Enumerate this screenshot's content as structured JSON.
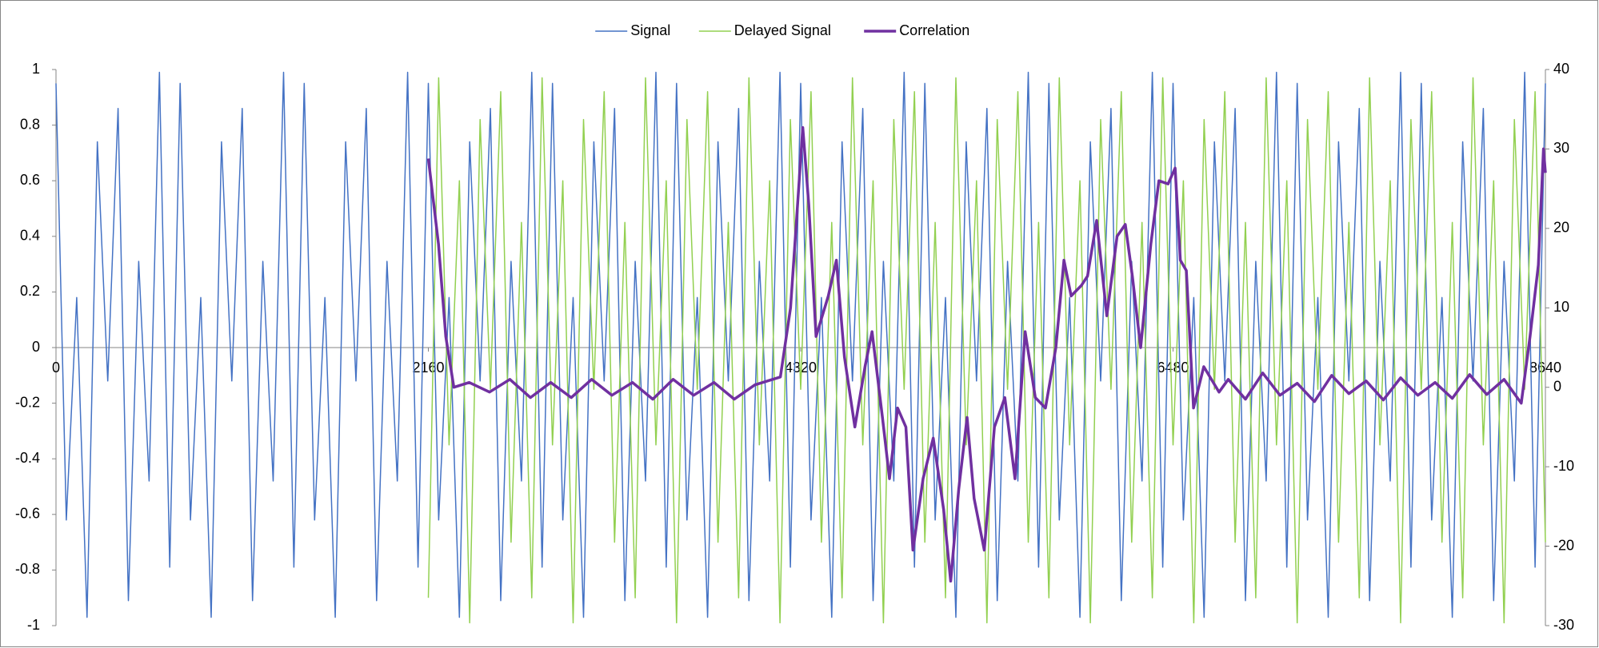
{
  "chart_data": {
    "type": "line",
    "xlim": [
      0,
      8640
    ],
    "xticks": [
      0,
      2160,
      4320,
      6480,
      8640
    ],
    "ylim": [
      -1,
      1
    ],
    "yticks": [
      -1,
      -0.8,
      -0.6,
      -0.4,
      -0.2,
      0,
      0.2,
      0.4,
      0.6,
      0.8,
      1
    ],
    "y2lim": [
      -30,
      40
    ],
    "y2ticks": [
      -30,
      -20,
      -10,
      0,
      10,
      20,
      30,
      40
    ],
    "legend": "top",
    "series": [
      {
        "name": "Signal",
        "color": "#4472c4",
        "width": 1.5,
        "x": [
          0,
          60,
          120,
          180,
          240,
          300,
          360,
          420,
          480,
          540,
          600,
          660,
          720,
          780,
          840,
          900,
          960,
          1020,
          1080,
          1140,
          1200,
          1260,
          1320,
          1380,
          1440,
          1500,
          1560,
          1620,
          1680,
          1740,
          1800,
          1860,
          1920,
          1980,
          2040,
          2100,
          2160,
          2220,
          2280,
          2340,
          2400,
          2460,
          2520,
          2580,
          2640,
          2700,
          2760,
          2820,
          2880,
          2940,
          3000,
          3060,
          3120,
          3180,
          3240,
          3300,
          3360,
          3420,
          3480,
          3540,
          3600,
          3660,
          3720,
          3780,
          3840,
          3900,
          3960,
          4020,
          4080,
          4140,
          4200,
          4260,
          4320,
          4380,
          4440,
          4500,
          4560,
          4620,
          4680,
          4740,
          4800,
          4860,
          4920,
          4980,
          5040,
          5100,
          5160,
          5220,
          5280,
          5340,
          5400,
          5460,
          5520,
          5580,
          5640,
          5700,
          5760,
          5820,
          5880,
          5940,
          6000,
          6060,
          6120,
          6180,
          6240,
          6300,
          6360,
          6420,
          6480,
          6540,
          6600,
          6660,
          6720,
          6780,
          6840,
          6900,
          6960,
          7020,
          7080,
          7140,
          7200,
          7260,
          7320,
          7380,
          7440,
          7500,
          7560,
          7620,
          7680,
          7740,
          7800,
          7860,
          7920,
          7980,
          8040,
          8100,
          8160,
          8220,
          8280,
          8340,
          8400,
          8460,
          8520,
          8580,
          8640
        ],
        "values": [
          0.95,
          -0.62,
          0.18,
          -0.97,
          0.74,
          -0.12,
          0.86,
          -0.91,
          0.31,
          -0.48,
          0.99,
          -0.79,
          0.95,
          -0.62,
          0.18,
          -0.97,
          0.74,
          -0.12,
          0.86,
          -0.91,
          0.31,
          -0.48,
          0.99,
          -0.79,
          0.95,
          -0.62,
          0.18,
          -0.97,
          0.74,
          -0.12,
          0.86,
          -0.91,
          0.31,
          -0.48,
          0.99,
          -0.79,
          0.95,
          -0.62,
          0.18,
          -0.97,
          0.74,
          -0.12,
          0.86,
          -0.91,
          0.31,
          -0.48,
          0.99,
          -0.79,
          0.95,
          -0.62,
          0.18,
          -0.97,
          0.74,
          -0.12,
          0.86,
          -0.91,
          0.31,
          -0.48,
          0.99,
          -0.79,
          0.95,
          -0.62,
          0.18,
          -0.97,
          0.74,
          -0.12,
          0.86,
          -0.91,
          0.31,
          -0.48,
          0.99,
          -0.79,
          0.95,
          -0.62,
          0.18,
          -0.97,
          0.74,
          -0.12,
          0.86,
          -0.91,
          0.31,
          -0.48,
          0.99,
          -0.79,
          0.95,
          -0.62,
          0.18,
          -0.97,
          0.74,
          -0.12,
          0.86,
          -0.91,
          0.31,
          -0.48,
          0.99,
          -0.79,
          0.95,
          -0.62,
          0.18,
          -0.97,
          0.74,
          -0.12,
          0.86,
          -0.91,
          0.31,
          -0.48,
          0.99,
          -0.79,
          0.95,
          -0.62,
          0.18,
          -0.97,
          0.74,
          -0.12,
          0.86,
          -0.91,
          0.31,
          -0.48,
          0.99,
          -0.79,
          0.95,
          -0.62,
          0.18,
          -0.97,
          0.74,
          -0.12,
          0.86,
          -0.91,
          0.31,
          -0.48,
          0.99,
          -0.79,
          0.95,
          -0.62,
          0.18,
          -0.97,
          0.74,
          -0.12,
          0.86,
          -0.91,
          0.31,
          -0.48,
          0.99,
          -0.79,
          0.95
        ]
      },
      {
        "name": "Delayed Signal",
        "color": "#92d050",
        "width": 1.5,
        "x": [
          2160,
          2220,
          2280,
          2340,
          2400,
          2460,
          2520,
          2580,
          2640,
          2700,
          2760,
          2820,
          2880,
          2940,
          3000,
          3060,
          3120,
          3180,
          3240,
          3300,
          3360,
          3420,
          3480,
          3540,
          3600,
          3660,
          3720,
          3780,
          3840,
          3900,
          3960,
          4020,
          4080,
          4140,
          4200,
          4260,
          4320,
          4380,
          4440,
          4500,
          4560,
          4620,
          4680,
          4740,
          4800,
          4860,
          4920,
          4980,
          5040,
          5100,
          5160,
          5220,
          5280,
          5340,
          5400,
          5460,
          5520,
          5580,
          5640,
          5700,
          5760,
          5820,
          5880,
          5940,
          6000,
          6060,
          6120,
          6180,
          6240,
          6300,
          6360,
          6420,
          6480,
          6540,
          6600,
          6660,
          6720,
          6780,
          6840,
          6900,
          6960,
          7020,
          7080,
          7140,
          7200,
          7260,
          7320,
          7380,
          7440,
          7500,
          7560,
          7620,
          7680,
          7740,
          7800,
          7860,
          7920,
          7980,
          8040,
          8100,
          8160,
          8220,
          8280,
          8340,
          8400,
          8460,
          8520,
          8580,
          8640
        ],
        "values": [
          -0.9,
          0.97,
          -0.35,
          0.6,
          -0.99,
          0.82,
          -0.15,
          0.92,
          -0.7,
          0.45,
          -0.9,
          0.97,
          -0.35,
          0.6,
          -0.99,
          0.82,
          -0.15,
          0.92,
          -0.7,
          0.45,
          -0.9,
          0.97,
          -0.35,
          0.6,
          -0.99,
          0.82,
          -0.15,
          0.92,
          -0.7,
          0.45,
          -0.9,
          0.97,
          -0.35,
          0.6,
          -0.99,
          0.82,
          -0.15,
          0.92,
          -0.7,
          0.45,
          -0.9,
          0.97,
          -0.35,
          0.6,
          -0.99,
          0.82,
          -0.15,
          0.92,
          -0.7,
          0.45,
          -0.9,
          0.97,
          -0.35,
          0.6,
          -0.99,
          0.82,
          -0.15,
          0.92,
          -0.7,
          0.45,
          -0.9,
          0.97,
          -0.35,
          0.6,
          -0.99,
          0.82,
          -0.15,
          0.92,
          -0.7,
          0.45,
          -0.9,
          0.97,
          -0.35,
          0.6,
          -0.99,
          0.82,
          -0.15,
          0.92,
          -0.7,
          0.45,
          -0.9,
          0.97,
          -0.35,
          0.6,
          -0.99,
          0.82,
          -0.15,
          0.92,
          -0.7,
          0.45,
          -0.9,
          0.97,
          -0.35,
          0.6,
          -0.99,
          0.82,
          -0.15,
          0.92,
          -0.7,
          0.45,
          -0.9,
          0.97,
          -0.35,
          0.6,
          -0.99,
          0.82,
          -0.15,
          0.92,
          -0.7
        ]
      },
      {
        "name": "Correlation",
        "color": "#7030a0",
        "width": 3.5,
        "axis": "y2",
        "x": [
          2160,
          2219,
          2261,
          2308,
          2397,
          2515,
          2633,
          2752,
          2870,
          2989,
          3107,
          3225,
          3344,
          3462,
          3580,
          3699,
          3817,
          3935,
          4054,
          4202,
          4261,
          4302,
          4332,
          4367,
          4409,
          4480,
          4527,
          4574,
          4634,
          4693,
          4734,
          4794,
          4835,
          4882,
          4930,
          4971,
          5030,
          5089,
          5149,
          5190,
          5237,
          5285,
          5326,
          5385,
          5444,
          5504,
          5563,
          5622,
          5681,
          5740,
          5800,
          5847,
          5889,
          5948,
          5984,
          6037,
          6096,
          6155,
          6203,
          6244,
          6292,
          6351,
          6398,
          6451,
          6492,
          6522,
          6557,
          6599,
          6658,
          6747,
          6800,
          6900,
          7000,
          7100,
          7200,
          7300,
          7400,
          7500,
          7600,
          7700,
          7800,
          7900,
          8000,
          8100,
          8200,
          8300,
          8400,
          8500,
          8551,
          8599,
          8629,
          8640
        ],
        "values": [
          28.8,
          18,
          6.4,
          0,
          0.6,
          -0.6,
          1,
          -1.3,
          0.6,
          -1.3,
          1,
          -1,
          0.6,
          -1.5,
          1,
          -1,
          0.6,
          -1.5,
          0.3,
          1.3,
          10,
          23,
          32.7,
          23,
          6.4,
          11.5,
          16,
          3.8,
          -5,
          2.6,
          7,
          -3.8,
          -11.5,
          -2.6,
          -5,
          -20.5,
          -11.5,
          -6.4,
          -15.4,
          -24.4,
          -12.8,
          -3.8,
          -14,
          -20.5,
          -5,
          -1.3,
          -11.5,
          7,
          -1.3,
          -2.6,
          5,
          16,
          11.5,
          12.8,
          14,
          21,
          9,
          19,
          20.5,
          14,
          5,
          18,
          26,
          25.6,
          27.6,
          16,
          14.7,
          -2.6,
          2.6,
          -0.6,
          1,
          -1.5,
          1.8,
          -1,
          0.5,
          -1.8,
          1.5,
          -0.8,
          0.8,
          -1.6,
          1.2,
          -1,
          0.6,
          -1.4,
          1.6,
          -0.9,
          1,
          -2,
          6.4,
          15.4,
          30,
          27
        ]
      }
    ]
  }
}
